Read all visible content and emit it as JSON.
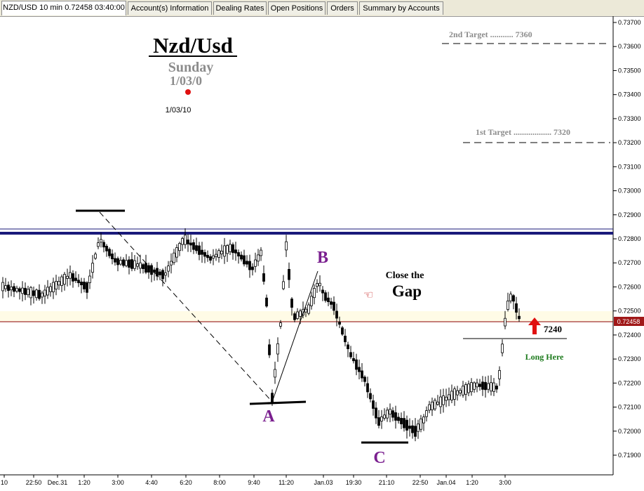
{
  "tabs": [
    {
      "label": "NZD/USD 10 min 0.72458 03:40:00"
    },
    {
      "label": "Account(s) Information"
    },
    {
      "label": "Dealing Rates"
    },
    {
      "label": "Open Positions"
    },
    {
      "label": "Orders"
    },
    {
      "label": "Summary by Accounts"
    }
  ],
  "annotations": {
    "title": "Nzd/Usd",
    "day": "Sunday",
    "date_large": "1/03/0",
    "date_small": "1/03/10",
    "target2": "2nd Target ........... 7360",
    "target1": "1st Target .................. 7320",
    "close_line1": "Close the",
    "close_line2": "Gap",
    "point_a": "A",
    "point_b": "B",
    "point_c": "C",
    "level": "7240",
    "long_here": "Long Here"
  },
  "colors": {
    "up_candle": "#ffffff",
    "down_candle": "#000000",
    "resistance": "#1a1a7a",
    "current_price_line": "#8b0000",
    "price_badge": "#a01818",
    "label_purple": "#7a1f8f",
    "long_here": "#1c7a1c",
    "arrow": "#e01010"
  },
  "chart_data": {
    "type": "candlestick",
    "symbol": "NZD/USD",
    "timeframe": "10 min",
    "last_price": "0.72458",
    "ylim": [
      0.7187,
      0.7375
    ],
    "y_ticks": [
      "0.71900",
      "0.72000",
      "0.72100",
      "0.72200",
      "0.72300",
      "0.72400",
      "0.72500",
      "0.72600",
      "0.72700",
      "0.72800",
      "0.72900",
      "0.73000",
      "0.73100",
      "0.73200",
      "0.73300",
      "0.73400",
      "0.73500",
      "0.73600",
      "0.73700"
    ],
    "x_ticks": [
      "10",
      "22:50",
      "Dec.31",
      "1:20",
      "3:00",
      "4:40",
      "6:20",
      "8:00",
      "9:40",
      "11:20",
      "Jan.03",
      "19:30",
      "21:10",
      "22:50",
      "Jan.04",
      "1:20",
      "3:00"
    ],
    "resistance_level": 0.7282,
    "current_price": 0.72458,
    "target_1": 0.732,
    "target_2": 0.736,
    "long_entry": 0.724,
    "swing_points": [
      {
        "name": "A",
        "price": 0.7212
      },
      {
        "name": "B",
        "price": 0.7266
      },
      {
        "name": "C",
        "price": 0.7196
      }
    ]
  }
}
